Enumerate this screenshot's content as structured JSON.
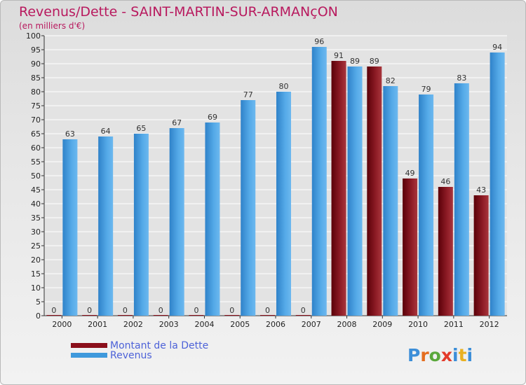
{
  "chart_data": {
    "type": "bar",
    "title": "Revenus/Dette - SAINT-MARTIN-SUR-ARMANçON",
    "subtitle": "(en milliers d'€)",
    "categories": [
      "2000",
      "2001",
      "2002",
      "2003",
      "2004",
      "2005",
      "2006",
      "2007",
      "2008",
      "2009",
      "2010",
      "2011",
      "2012"
    ],
    "series": [
      {
        "name": "Montant de la Dette",
        "color": "#8b0f1a",
        "values": [
          0,
          0,
          0,
          0,
          0,
          0,
          0,
          0,
          91,
          89,
          49,
          46,
          43
        ]
      },
      {
        "name": "Revenus",
        "color": "#3f99dc",
        "values": [
          63,
          64,
          65,
          67,
          69,
          77,
          80,
          96,
          89,
          82,
          79,
          83,
          94
        ]
      }
    ],
    "ylim": [
      0,
      100
    ],
    "ytick_step": 5,
    "grid": true,
    "legend_position": "bottom-left"
  },
  "logo": {
    "text": "Proxiti",
    "colors": [
      "#3c8ed8",
      "#e46d1e",
      "#5aa83c",
      "#e33b2a",
      "#3c8ed8",
      "#e9b122",
      "#3c8ed8"
    ]
  }
}
